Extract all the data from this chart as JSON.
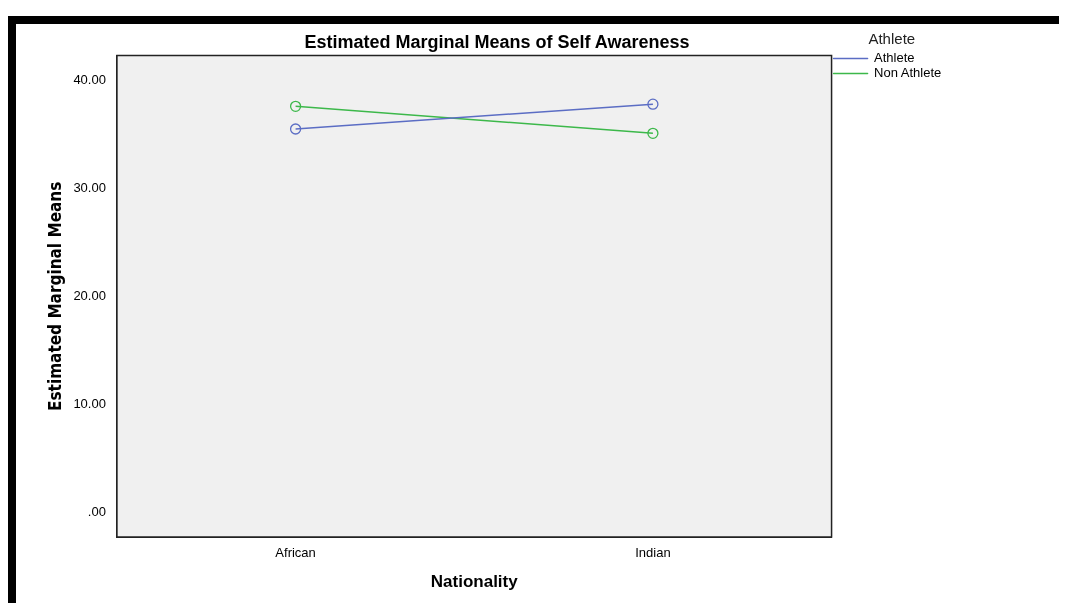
{
  "chart_data": {
    "type": "line",
    "title": "Estimated Marginal Means of Self Awareness",
    "xlabel": "Nationality",
    "ylabel": "Estimated Marginal Means",
    "legend_title": "Athlete",
    "categories": [
      "African",
      "Indian"
    ],
    "series": [
      {
        "name": "Athlete",
        "color": "#5b6dc4",
        "values": [
          35.5,
          37.8
        ]
      },
      {
        "name": "Non Athlete",
        "color": "#3cb84a",
        "values": [
          37.6,
          35.1
        ]
      }
    ],
    "ylim": [
      -2.3,
      42.3
    ],
    "yticks": [
      {
        "value": 0,
        "label": ".00"
      },
      {
        "value": 10,
        "label": "10.00"
      },
      {
        "value": 20,
        "label": "20.00"
      },
      {
        "value": 30,
        "label": "30.00"
      },
      {
        "value": 40,
        "label": "40.00"
      }
    ],
    "grid": false,
    "legend": "top right",
    "marker": "circle",
    "line_style": "solid"
  }
}
